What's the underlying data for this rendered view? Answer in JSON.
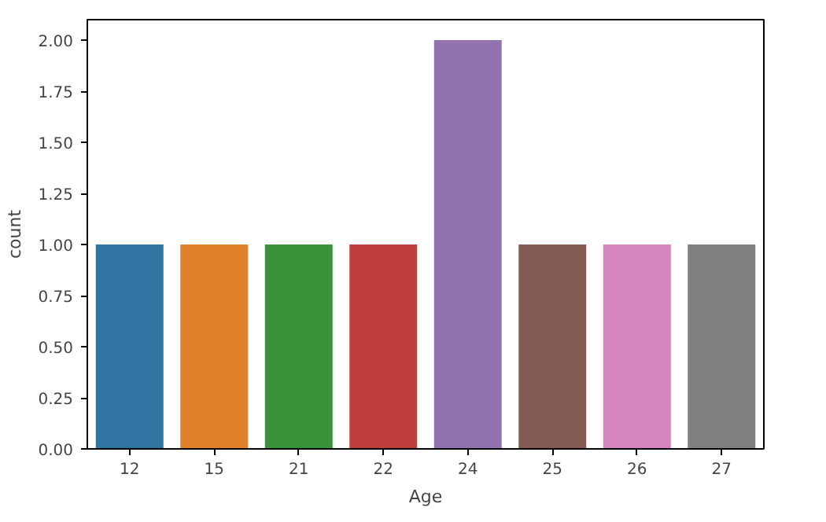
{
  "chart_data": {
    "type": "bar",
    "xlabel": "Age",
    "ylabel": "count",
    "categories": [
      "12",
      "15",
      "21",
      "22",
      "24",
      "25",
      "26",
      "27"
    ],
    "values": [
      1,
      1,
      1,
      1,
      2,
      1,
      1,
      1
    ],
    "colors": [
      "#3274a1",
      "#e1812c",
      "#3a923a",
      "#c03d3e",
      "#9372b2",
      "#845b53",
      "#d684bd",
      "#7f7f7f"
    ],
    "ylim": [
      0,
      2.1
    ],
    "yticks": [
      {
        "value": 0,
        "label": "0.00"
      },
      {
        "value": 0.25,
        "label": "0.25"
      },
      {
        "value": 0.5,
        "label": "0.50"
      },
      {
        "value": 0.75,
        "label": "0.75"
      },
      {
        "value": 1,
        "label": "1.00"
      },
      {
        "value": 1.25,
        "label": "1.25"
      },
      {
        "value": 1.5,
        "label": "1.50"
      },
      {
        "value": 1.75,
        "label": "1.75"
      },
      {
        "value": 2,
        "label": "2.00"
      }
    ],
    "grid": false
  }
}
